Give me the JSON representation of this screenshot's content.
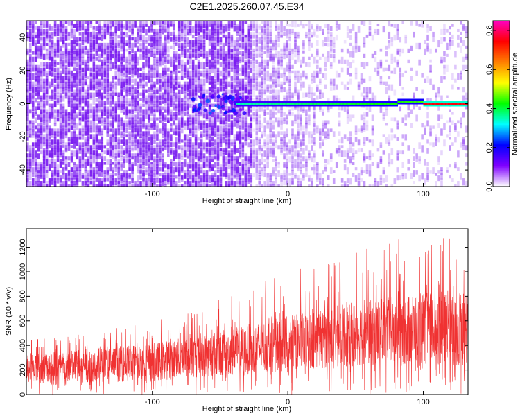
{
  "figure": {
    "title": "C2E1.2025.260.07.45.E34"
  },
  "chart_data": [
    {
      "type": "heatmap",
      "name": "spectrogram",
      "xlabel": "Height of straight line (km)",
      "ylabel": "Frequency (Hz)",
      "xlim": [
        -193,
        133
      ],
      "ylim": [
        -50,
        50
      ],
      "xticks": [
        -100,
        0,
        100
      ],
      "yticks": [
        -40,
        -20,
        0,
        20,
        40
      ],
      "xtick_labels": [
        "-100",
        "0",
        "100"
      ],
      "ytick_labels": [
        "-40",
        "-20",
        "0",
        "20",
        "40"
      ],
      "colorbar": {
        "label": "Normalized spectral amplitude",
        "range": [
          0,
          0.85
        ],
        "ticks": [
          0.0,
          0.2,
          0.4,
          0.6,
          0.8
        ],
        "tick_labels": [
          "0.0",
          "0.2",
          "0.4",
          "0.6",
          "0.8"
        ],
        "colormap": [
          "#ffffff",
          "#7f00ff",
          "#0000ff",
          "#00ffff",
          "#00ff00",
          "#ffff00",
          "#ff7f00",
          "#ff0000",
          "#ff00c0"
        ]
      },
      "features": {
        "noise_cloud_color": "#7a1cf0",
        "carrier_frequency_hz": 0,
        "carrier_start_km": -38,
        "carrier_peak_km": [
          100,
          133
        ],
        "carrier_peak_amplitude": 0.75,
        "carrier_mid_amplitude": 0.35,
        "turbulent_region_km": [
          -70,
          -30
        ]
      }
    },
    {
      "type": "line",
      "name": "snr",
      "color": "#f03232",
      "xlabel": "Height of straight line (km)",
      "ylabel": "SNR (10 * v/v)",
      "xlim": [
        -193,
        133
      ],
      "ylim": [
        0,
        1350
      ],
      "xticks": [
        -100,
        0,
        100
      ],
      "yticks": [
        0,
        200,
        400,
        600,
        800,
        1000,
        1200
      ],
      "xtick_labels": [
        "-100",
        "0",
        "100"
      ],
      "ytick_labels": [
        "0",
        "200",
        "400",
        "600",
        "800",
        "1000",
        "1200"
      ],
      "envelope": {
        "x": [
          -193,
          -150,
          -100,
          -50,
          0,
          50,
          100,
          133
        ],
        "lower_mean": [
          90,
          100,
          110,
          150,
          190,
          230,
          240,
          250
        ],
        "upper_mean": [
          340,
          370,
          420,
          520,
          640,
          760,
          830,
          850
        ],
        "peak_max": [
          450,
          500,
          600,
          780,
          1000,
          1200,
          1320,
          1250
        ]
      }
    }
  ]
}
